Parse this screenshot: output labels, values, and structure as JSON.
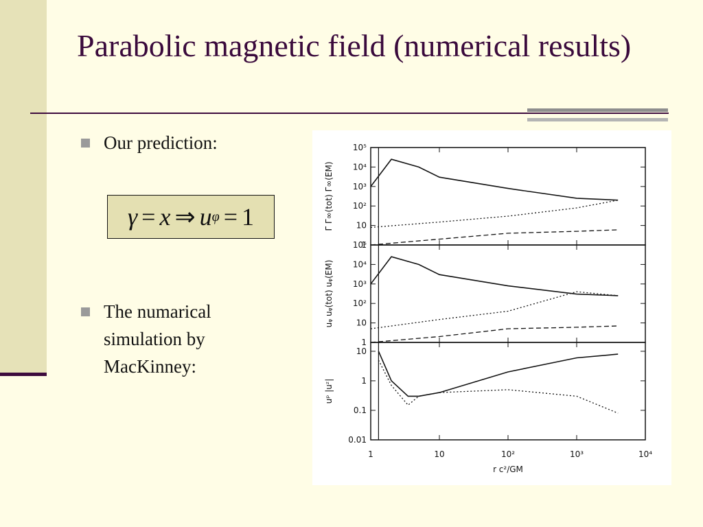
{
  "slide": {
    "title": "Parabolic magnetic field (numerical results)",
    "bullets": [
      {
        "text": "Our prediction:"
      },
      {
        "text": "The numarical simulation by MacKinney:"
      }
    ],
    "formula": {
      "gamma": "γ",
      "x": "x",
      "u": "u",
      "sub": "φ",
      "equals": "=",
      "implies": "⇒",
      "one": "1"
    }
  },
  "chart_data": [
    {
      "type": "line",
      "panel": "top",
      "ylabel": "Γ   Γ∞(tot)   Γ∞(EM)",
      "yticks": [
        "1",
        "10",
        "10²",
        "10³",
        "10⁴",
        "10⁵"
      ],
      "series": [
        {
          "values": [
            [
              1,
              1000
            ],
            [
              2,
              25000
            ],
            [
              5,
              10000
            ],
            [
              10,
              3000
            ],
            [
              100,
              800
            ],
            [
              1000,
              250
            ],
            [
              4000,
              200
            ]
          ]
        },
        {
          "values": [
            [
              1,
              8
            ],
            [
              10,
              15
            ],
            [
              100,
              30
            ],
            [
              1000,
              80
            ],
            [
              4000,
              200
            ]
          ]
        },
        {
          "values": [
            [
              1,
              1
            ],
            [
              10,
              2
            ],
            [
              100,
              4
            ],
            [
              1000,
              5
            ],
            [
              4000,
              6
            ]
          ]
        }
      ]
    },
    {
      "type": "line",
      "panel": "middle",
      "ylabel": "uᵩ   uᵩ(tot)   uᵩ(EM)",
      "yticks": [
        "1",
        "10",
        "10²",
        "10³",
        "10⁴",
        "10⁵"
      ],
      "series": [
        {
          "values": [
            [
              1,
              1000
            ],
            [
              2,
              25000
            ],
            [
              5,
              10000
            ],
            [
              10,
              3000
            ],
            [
              100,
              800
            ],
            [
              1000,
              300
            ],
            [
              4000,
              250
            ]
          ]
        },
        {
          "values": [
            [
              1,
              5
            ],
            [
              10,
              15
            ],
            [
              100,
              40
            ],
            [
              1000,
              400
            ],
            [
              4000,
              250
            ]
          ]
        },
        {
          "values": [
            [
              1,
              1
            ],
            [
              10,
              2
            ],
            [
              100,
              5
            ],
            [
              1000,
              6
            ],
            [
              4000,
              7
            ]
          ]
        }
      ]
    },
    {
      "type": "line",
      "panel": "bottom",
      "ylabel": "uᵖ   |uᶻ|",
      "yticks": [
        "0.01",
        "0.1",
        "1",
        "10"
      ],
      "xticks": [
        "1",
        "10",
        "10²",
        "10³",
        "10⁴"
      ],
      "xlabel": "r c²/GM",
      "series": [
        {
          "values": [
            [
              1.3,
              10
            ],
            [
              2,
              1
            ],
            [
              3.5,
              0.3
            ],
            [
              5,
              0.3
            ],
            [
              10,
              0.4
            ],
            [
              100,
              2
            ],
            [
              1000,
              6
            ],
            [
              4000,
              8
            ]
          ]
        },
        {
          "values": [
            [
              1.3,
              5
            ],
            [
              2,
              0.7
            ],
            [
              3.5,
              0.15
            ],
            [
              5,
              0.3
            ],
            [
              10,
              0.4
            ],
            [
              100,
              0.5
            ],
            [
              1000,
              0.3
            ],
            [
              4000,
              0.08
            ]
          ]
        }
      ]
    }
  ]
}
